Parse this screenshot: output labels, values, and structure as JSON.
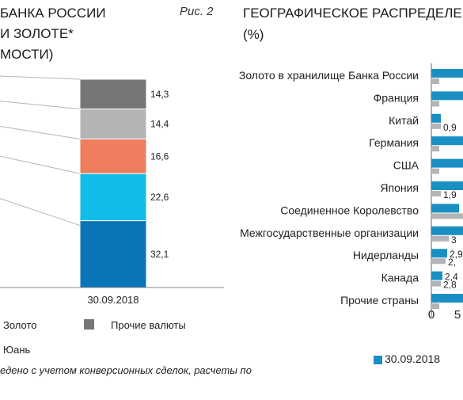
{
  "left": {
    "title_lines": [
      "БАНКА РОССИИ",
      "И ЗОЛОТЕ*",
      "МОСТИ)"
    ],
    "fig_label": "Рис. 2",
    "chart_data": {
      "type": "bar",
      "stacked": true,
      "categories": [
        "30.09.2018"
      ],
      "segments": [
        {
          "value": 32.1,
          "label": "32,1",
          "color": "#0a74b9"
        },
        {
          "value": 22.6,
          "label": "22,6",
          "color": "#10bde9"
        },
        {
          "value": 16.6,
          "label": "16,6",
          "color": "#ef7d5e"
        },
        {
          "value": 14.4,
          "label": "14,4",
          "color": "#b3b4b6"
        },
        {
          "value": 14.3,
          "label": "14,3",
          "color": "#767677"
        }
      ]
    },
    "legend": [
      {
        "label": "Золото",
        "color": ""
      },
      {
        "label": "Прочие валюты",
        "color": "#767677"
      },
      {
        "label": "Юань",
        "color": ""
      }
    ],
    "note": "едено с учетом конверсионных сделок, расчеты по"
  },
  "right": {
    "title_lines": [
      "ГЕОГРАФИЧЕСКОЕ РАСПРЕДЕЛЕН",
      "(%)"
    ],
    "chart_data": {
      "type": "bar",
      "orientation": "horizontal",
      "categories": [
        "Золото в хранилище Банка России",
        "Франция",
        "Китай",
        "Германия",
        "США",
        "Япония",
        "Соединенное Королевство",
        "Межгосударственные организации",
        "Нидерланды",
        "Канада",
        "Прочие страны"
      ],
      "series": [
        {
          "name": "30.09.2018",
          "color": "#1a8fc3",
          "labels": [
            "",
            "",
            "",
            "",
            "",
            "",
            "",
            "",
            "2,9",
            "2,4",
            ""
          ]
        },
        {
          "name": "",
          "color": "#b3b4b6",
          "labels": [
            "",
            "",
            "0,9",
            "",
            "",
            "1,9",
            "",
            "3",
            "2,",
            "2,8",
            ""
          ]
        }
      ],
      "x_ticks": [
        "0",
        "5"
      ]
    },
    "legend": [
      {
        "label": "30.09.2018",
        "color": "#1a8fc3"
      }
    ]
  }
}
